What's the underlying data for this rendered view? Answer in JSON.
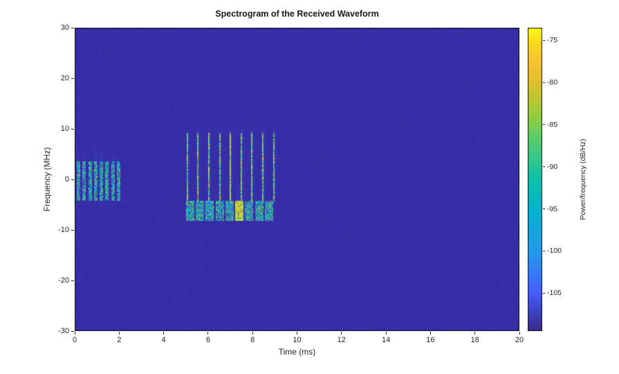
{
  "figure": {
    "title": "Spectrogram of the Received Waveform",
    "xlabel": "Time (ms)",
    "ylabel": "Frequency (MHz)",
    "colorbar_label": "Power/frequency (dB/Hz)"
  },
  "chart_data": {
    "type": "heatmap",
    "subtype": "spectrogram",
    "title": "Spectrogram of the Received Waveform",
    "xlabel": "Time (ms)",
    "ylabel": "Frequency (MHz)",
    "xlim": [
      0,
      20
    ],
    "ylim": [
      -30,
      30
    ],
    "xticks": [
      0,
      2,
      4,
      6,
      8,
      10,
      12,
      14,
      16,
      18,
      20
    ],
    "yticks": [
      -30,
      -20,
      -10,
      0,
      10,
      20,
      30
    ],
    "grid": false,
    "legend": false,
    "colorbar": {
      "label": "Power/frequency (dB/Hz)",
      "ticks": [
        -75,
        -80,
        -85,
        -90,
        -95,
        -100,
        -105
      ],
      "cmax": -73.5,
      "cmin": -109.5,
      "colormap": "parula",
      "stops": [
        {
          "pos": 0.0,
          "color": "#352a87"
        },
        {
          "pos": 0.13,
          "color": "#465efb"
        },
        {
          "pos": 0.25,
          "color": "#2796eb"
        },
        {
          "pos": 0.38,
          "color": "#0bb0d3"
        },
        {
          "pos": 0.44,
          "color": "#05b8c0"
        },
        {
          "pos": 0.51,
          "color": "#13c1a8"
        },
        {
          "pos": 0.57,
          "color": "#36c88b"
        },
        {
          "pos": 0.64,
          "color": "#5ecd68"
        },
        {
          "pos": 0.7,
          "color": "#8dcc44"
        },
        {
          "pos": 0.76,
          "color": "#bbc633"
        },
        {
          "pos": 0.83,
          "color": "#e3c02f"
        },
        {
          "pos": 0.89,
          "color": "#fbc134"
        },
        {
          "pos": 0.95,
          "color": "#f7db1d"
        },
        {
          "pos": 1.0,
          "color": "#f9fb15"
        }
      ]
    },
    "background": {
      "noise_floor_db": -107,
      "base_color": "#372da6",
      "noise_colors": [
        "#31249a",
        "#3d37b8",
        "#342a92",
        "#3b32ae"
      ]
    },
    "events": [
      {
        "id": "pulse-burst-1",
        "kind": "pulse-train",
        "t_start_ms": 0.1,
        "t_end_ms": 2.15,
        "f_low_mhz": -4.2,
        "f_high_mhz": 3.6,
        "num_pulses": 8,
        "duty": 0.66,
        "palette": "bright"
      },
      {
        "id": "chirp-spikes",
        "kind": "spike-train",
        "t_start_ms": 5.06,
        "t_end_ms": 8.95,
        "f_low_mhz": -4.5,
        "f_high_mhz": 9.2,
        "num_spikes": 9,
        "core_width_ms": 0.07,
        "bright_index": 4,
        "palette": "spike"
      },
      {
        "id": "pulse-burst-2",
        "kind": "pulse-train",
        "t_start_ms": 5.0,
        "t_end_ms": 9.0,
        "f_low_mhz": -8.3,
        "f_high_mhz": -4.3,
        "num_pulses": 9,
        "duty": 0.86,
        "hot_indices": [
          5
        ],
        "palette": "bright"
      },
      {
        "id": "haze-above-hot-block",
        "kind": "haze",
        "t_start_ms": 7.24,
        "t_end_ms": 7.42,
        "f_low_mhz": -4.3,
        "f_high_mhz": -0.8
      }
    ],
    "palettes": {
      "bright": [
        [
          0.24,
          null
        ],
        [
          0.08,
          "#465efb"
        ],
        [
          0.12,
          "#2796eb"
        ],
        [
          0.14,
          "#0bb0d3"
        ],
        [
          0.14,
          "#13c1a8"
        ],
        [
          0.12,
          "#36c88b"
        ],
        [
          0.08,
          "#5ecd68"
        ],
        [
          0.04,
          "#8dcc44"
        ],
        [
          0.025,
          "#e3c02f"
        ],
        [
          0.015,
          "#f9fb15"
        ]
      ],
      "spike": [
        [
          0.12,
          null
        ],
        [
          0.08,
          "#2796eb"
        ],
        [
          0.12,
          "#13c1a8"
        ],
        [
          0.16,
          "#36c88b"
        ],
        [
          0.16,
          "#5ecd68"
        ],
        [
          0.12,
          "#8dcc44"
        ],
        [
          0.1,
          "#e3c02f"
        ],
        [
          0.07,
          "#fbc134"
        ],
        [
          0.07,
          "#f9fb15"
        ]
      ],
      "hot": [
        [
          0.06,
          null
        ],
        [
          0.1,
          "#36c88b"
        ],
        [
          0.12,
          "#5ecd68"
        ],
        [
          0.16,
          "#8dcc44"
        ],
        [
          0.2,
          "#e3c02f"
        ],
        [
          0.18,
          "#fbc134"
        ],
        [
          0.18,
          "#f9fb15"
        ]
      ]
    }
  }
}
